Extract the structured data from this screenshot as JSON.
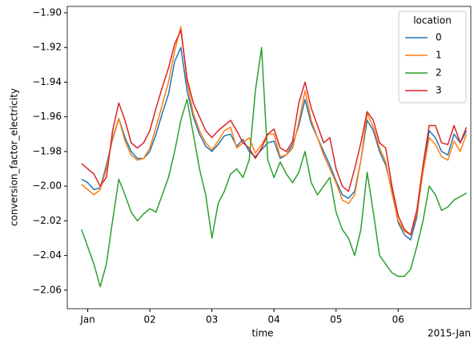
{
  "chart_data": {
    "type": "line",
    "x_label": "time",
    "y_label": "conversion_factor_electricity",
    "x_offset_label": "2015-Jan",
    "legend_title": "location",
    "legend_loc": "upper right",
    "grid": false,
    "xlim": [
      -0.33,
      6.17
    ],
    "ylim": [
      -2.0707,
      -1.8963
    ],
    "xticks": [
      {
        "value": 0,
        "label": "Jan"
      },
      {
        "value": 1,
        "label": "02"
      },
      {
        "value": 2,
        "label": "03"
      },
      {
        "value": 3,
        "label": "04"
      },
      {
        "value": 4,
        "label": "05"
      },
      {
        "value": 5,
        "label": "06"
      }
    ],
    "yticks": [
      {
        "value": -1.9,
        "label": "−1.90"
      },
      {
        "value": -1.92,
        "label": "−1.92"
      },
      {
        "value": -1.94,
        "label": "−1.94"
      },
      {
        "value": -1.96,
        "label": "−1.96"
      },
      {
        "value": -1.98,
        "label": "−1.98"
      },
      {
        "value": -2.0,
        "label": "−2.00"
      },
      {
        "value": -2.02,
        "label": "−2.02"
      },
      {
        "value": -2.04,
        "label": "−2.04"
      },
      {
        "value": -2.06,
        "label": "−2.06"
      }
    ],
    "x": [
      -0.1,
      0,
      0.1,
      0.2,
      0.3,
      0.4,
      0.5,
      0.6,
      0.7,
      0.8,
      0.9,
      1,
      1.1,
      1.2,
      1.3,
      1.4,
      1.5,
      1.6,
      1.7,
      1.8,
      1.9,
      2,
      2.1,
      2.2,
      2.3,
      2.4,
      2.5,
      2.6,
      2.7,
      2.8,
      2.9,
      3,
      3.1,
      3.2,
      3.3,
      3.4,
      3.5,
      3.6,
      3.7,
      3.8,
      3.9,
      4,
      4.1,
      4.2,
      4.3,
      4.4,
      4.5,
      4.6,
      4.7,
      4.8,
      4.9,
      5,
      5.1,
      5.2,
      5.3,
      5.4,
      5.5,
      5.6,
      5.7,
      5.8,
      5.9,
      6,
      6.1
    ],
    "series": [
      {
        "name": "0",
        "color": "#1f77b4",
        "values": [
          -1.996,
          -1.998,
          -2.002,
          -2.001,
          -1.988,
          -1.973,
          -1.961,
          -1.972,
          -1.98,
          -1.984,
          -1.984,
          -1.98,
          -1.97,
          -1.958,
          -1.947,
          -1.928,
          -1.92,
          -1.945,
          -1.96,
          -1.97,
          -1.977,
          -1.98,
          -1.976,
          -1.971,
          -1.97,
          -1.977,
          -1.973,
          -1.98,
          -1.983,
          -1.979,
          -1.975,
          -1.974,
          -1.984,
          -1.982,
          -1.976,
          -1.965,
          -1.95,
          -1.964,
          -1.972,
          -1.98,
          -1.988,
          -1.997,
          -2.005,
          -2.007,
          -2.003,
          -1.985,
          -1.962,
          -1.968,
          -1.98,
          -1.988,
          -2.002,
          -2.021,
          -2.028,
          -2.031,
          -2.018,
          -1.99,
          -1.968,
          -1.972,
          -1.98,
          -1.982,
          -1.97,
          -1.975,
          -1.968
        ]
      },
      {
        "name": "1",
        "color": "#ff7f0e",
        "values": [
          -1.999,
          -2.002,
          -2.005,
          -2.002,
          -1.99,
          -1.972,
          -1.961,
          -1.974,
          -1.982,
          -1.985,
          -1.984,
          -1.978,
          -1.966,
          -1.953,
          -1.94,
          -1.922,
          -1.908,
          -1.94,
          -1.958,
          -1.968,
          -1.975,
          -1.979,
          -1.974,
          -1.968,
          -1.966,
          -1.978,
          -1.975,
          -1.972,
          -1.981,
          -1.976,
          -1.97,
          -1.97,
          -1.983,
          -1.982,
          -1.978,
          -1.963,
          -1.945,
          -1.962,
          -1.972,
          -1.982,
          -1.99,
          -1.998,
          -2.008,
          -2.01,
          -2.005,
          -1.985,
          -1.958,
          -1.966,
          -1.978,
          -1.986,
          -2.004,
          -2.02,
          -2.026,
          -2.028,
          -2.016,
          -1.992,
          -1.972,
          -1.976,
          -1.983,
          -1.985,
          -1.974,
          -1.98,
          -1.97
        ]
      },
      {
        "name": "2",
        "color": "#2ca02c",
        "values": [
          -2.025,
          -2.035,
          -2.045,
          -2.058,
          -2.045,
          -2.02,
          -1.996,
          -2.005,
          -2.015,
          -2.02,
          -2.016,
          -2.013,
          -2.015,
          -2.005,
          -1.995,
          -1.98,
          -1.962,
          -1.95,
          -1.97,
          -1.99,
          -2.005,
          -2.03,
          -2.01,
          -2.003,
          -1.993,
          -1.99,
          -1.995,
          -1.985,
          -1.945,
          -1.92,
          -1.985,
          -1.995,
          -1.986,
          -1.993,
          -1.998,
          -1.992,
          -1.98,
          -1.998,
          -2.005,
          -2.0,
          -1.995,
          -2.015,
          -2.025,
          -2.03,
          -2.04,
          -2.025,
          -1.992,
          -2.015,
          -2.04,
          -2.045,
          -2.05,
          -2.052,
          -2.052,
          -2.048,
          -2.035,
          -2.02,
          -2.0,
          -2.005,
          -2.014,
          -2.012,
          -2.008,
          -2.006,
          -2.004
        ]
      },
      {
        "name": "3",
        "color": "#d62728",
        "values": [
          -1.987,
          -1.99,
          -1.993,
          -2.0,
          -1.995,
          -1.968,
          -1.952,
          -1.962,
          -1.975,
          -1.978,
          -1.975,
          -1.968,
          -1.955,
          -1.943,
          -1.932,
          -1.918,
          -1.91,
          -1.938,
          -1.952,
          -1.96,
          -1.968,
          -1.972,
          -1.968,
          -1.965,
          -1.962,
          -1.968,
          -1.975,
          -1.978,
          -1.984,
          -1.978,
          -1.97,
          -1.967,
          -1.978,
          -1.98,
          -1.974,
          -1.952,
          -1.94,
          -1.955,
          -1.965,
          -1.975,
          -1.972,
          -1.99,
          -2.0,
          -2.003,
          -1.99,
          -1.975,
          -1.957,
          -1.962,
          -1.975,
          -1.978,
          -2.0,
          -2.017,
          -2.025,
          -2.028,
          -2.014,
          -1.988,
          -1.965,
          -1.965,
          -1.975,
          -1.976,
          -1.965,
          -1.975,
          -1.966
        ]
      }
    ]
  }
}
